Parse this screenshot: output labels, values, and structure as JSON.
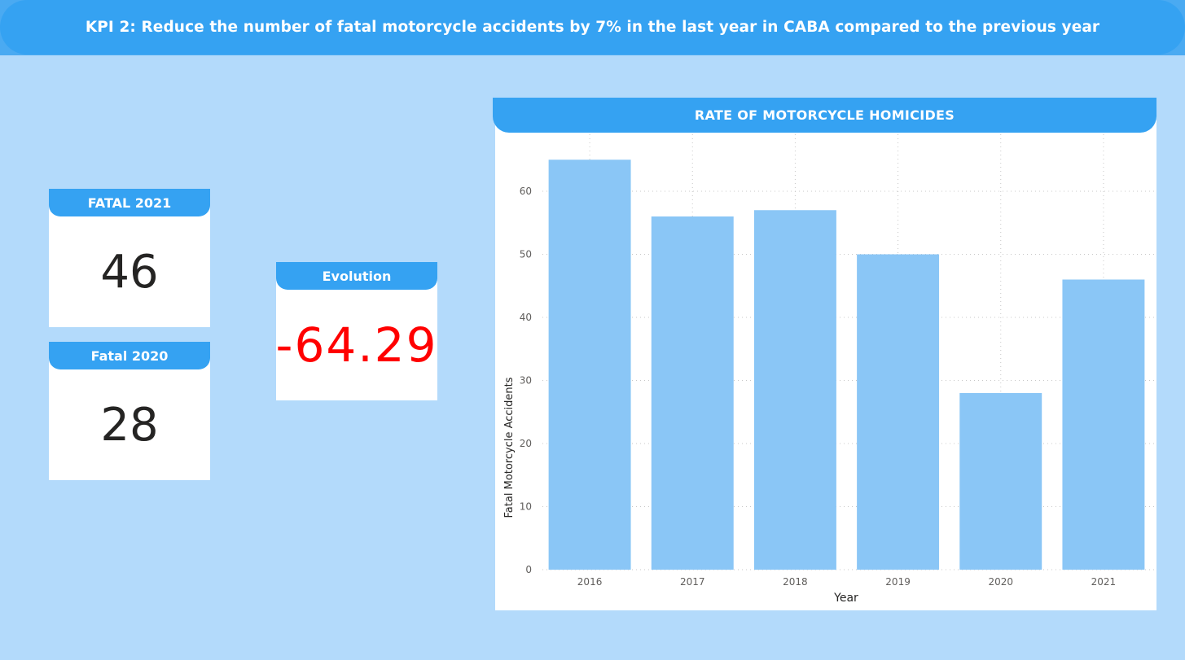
{
  "header": {
    "title": "KPI 2: Reduce the number of fatal motorcycle accidents by 7% in the last year in CABA compared to the previous year"
  },
  "cards": {
    "fatal_2021": {
      "label": "FATAL 2021",
      "value": "46"
    },
    "fatal_2020": {
      "label": "Fatal 2020",
      "value": "28"
    },
    "evolution": {
      "label": "Evolution",
      "value": "-64.29"
    }
  },
  "colors": {
    "background": "#b3dafb",
    "accent": "#35a2f2",
    "bar": "#8ac6f6",
    "negative": "#ff0000"
  },
  "chart_data": {
    "type": "bar",
    "title": "RATE OF MOTORCYCLE HOMICIDES",
    "xlabel": "Year",
    "ylabel": "Fatal Motorcycle Accidents",
    "categories": [
      "2016",
      "2017",
      "2018",
      "2019",
      "2020",
      "2021"
    ],
    "values": [
      65,
      56,
      57,
      50,
      28,
      46
    ],
    "ylim": [
      0,
      70
    ],
    "yticks": [
      0,
      10,
      20,
      30,
      40,
      50,
      60
    ],
    "grid": true,
    "legend": "none"
  }
}
